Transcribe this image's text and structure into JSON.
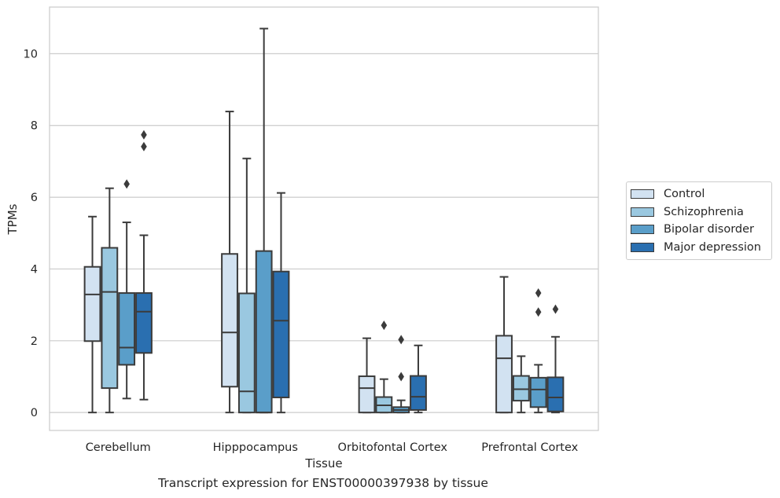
{
  "chart_data": {
    "type": "box",
    "xlabel": "Tissue",
    "ylabel": "TPMs",
    "caption": "Transcript expression for ENST00000397938 by tissue",
    "categories": [
      "Cerebellum",
      "Hipppocampus",
      "Orbitofontal Cortex",
      "Prefrontal Cortex"
    ],
    "ylim": [
      -0.5,
      11.3
    ],
    "yticks": [
      0,
      2,
      4,
      6,
      8,
      10
    ],
    "grid": true,
    "legend_position": "right",
    "series": [
      {
        "name": "Control",
        "color": "#d2e2f1",
        "boxes": [
          {
            "whisker_low": 0.0,
            "q1": 1.99,
            "median": 3.29,
            "q3": 4.06,
            "whisker_high": 5.46,
            "fliers": []
          },
          {
            "whisker_low": 0.0,
            "q1": 0.72,
            "median": 2.23,
            "q3": 4.42,
            "whisker_high": 8.39,
            "fliers": []
          },
          {
            "whisker_low": 0.0,
            "q1": 0.0,
            "median": 0.68,
            "q3": 1.01,
            "whisker_high": 2.07,
            "fliers": []
          },
          {
            "whisker_low": 0.0,
            "q1": 0.0,
            "median": 1.51,
            "q3": 2.14,
            "whisker_high": 3.78,
            "fliers": []
          }
        ]
      },
      {
        "name": "Schizophrenia",
        "color": "#9ac8e0",
        "boxes": [
          {
            "whisker_low": 0.0,
            "q1": 0.68,
            "median": 3.36,
            "q3": 4.59,
            "whisker_high": 6.25,
            "fliers": []
          },
          {
            "whisker_low": 0.0,
            "q1": 0.0,
            "median": 0.59,
            "q3": 3.32,
            "whisker_high": 7.08,
            "fliers": []
          },
          {
            "whisker_low": 0.0,
            "q1": 0.0,
            "median": 0.2,
            "q3": 0.43,
            "whisker_high": 0.93,
            "fliers": [
              2.43
            ]
          },
          {
            "whisker_low": 0.0,
            "q1": 0.33,
            "median": 0.65,
            "q3": 1.02,
            "whisker_high": 1.57,
            "fliers": []
          }
        ]
      },
      {
        "name": "Bipolar disorder",
        "color": "#5a9ec9",
        "boxes": [
          {
            "whisker_low": 0.39,
            "q1": 1.33,
            "median": 1.81,
            "q3": 3.33,
            "whisker_high": 5.3,
            "fliers": [
              6.37
            ]
          },
          {
            "whisker_low": 0.0,
            "q1": 0.0,
            "median": 0.0,
            "q3": 4.5,
            "whisker_high": 10.7,
            "fliers": []
          },
          {
            "whisker_low": 0.0,
            "q1": 0.0,
            "median": 0.07,
            "q3": 0.15,
            "whisker_high": 0.34,
            "fliers": [
              1.0,
              2.03
            ]
          },
          {
            "whisker_low": 0.0,
            "q1": 0.15,
            "median": 0.64,
            "q3": 0.97,
            "whisker_high": 1.33,
            "fliers": [
              2.8,
              3.33
            ]
          }
        ]
      },
      {
        "name": "Major depression",
        "color": "#2a6fb0",
        "boxes": [
          {
            "whisker_low": 0.36,
            "q1": 1.66,
            "median": 2.81,
            "q3": 3.33,
            "whisker_high": 4.94,
            "fliers": [
              7.41,
              7.74
            ]
          },
          {
            "whisker_low": 0.0,
            "q1": 0.42,
            "median": 2.56,
            "q3": 3.93,
            "whisker_high": 6.12,
            "fliers": []
          },
          {
            "whisker_low": 0.0,
            "q1": 0.07,
            "median": 0.44,
            "q3": 1.02,
            "whisker_high": 1.87,
            "fliers": []
          },
          {
            "whisker_low": 0.0,
            "q1": 0.03,
            "median": 0.42,
            "q3": 0.98,
            "whisker_high": 2.11,
            "fliers": [
              2.88
            ]
          }
        ]
      }
    ]
  }
}
